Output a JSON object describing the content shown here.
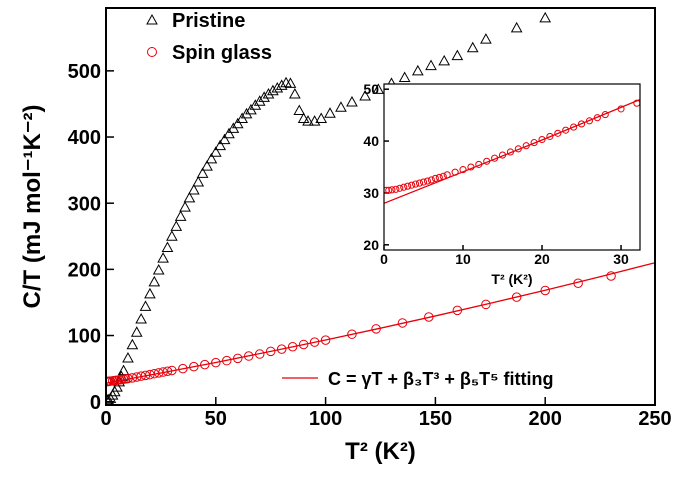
{
  "chart_data": [
    {
      "type": "scatter",
      "x_label": "T² (K²)",
      "y_label": "C/T (mJ mol⁻¹K⁻²)",
      "xlim": [
        0,
        250
      ],
      "ylim": [
        -5,
        595
      ],
      "xticks": [
        0,
        50,
        100,
        150,
        200,
        250
      ],
      "yticks": [
        0,
        100,
        200,
        300,
        400,
        500
      ],
      "series": [
        {
          "name": "Pristine",
          "marker": "triangle",
          "color": "#000000",
          "x": [
            0.5,
            1,
            2,
            3,
            4,
            5,
            6,
            7,
            8,
            10,
            12,
            14,
            16,
            18,
            20,
            22,
            24,
            26,
            28,
            30,
            32,
            34,
            36,
            38,
            40,
            42,
            44,
            46,
            48,
            50,
            52,
            54,
            56,
            58,
            60,
            62,
            64,
            66,
            68,
            70,
            72,
            74,
            76,
            78,
            80,
            82,
            84,
            86,
            88,
            90,
            92,
            95,
            98,
            102,
            107,
            112,
            118,
            124,
            130,
            136,
            142,
            148,
            154,
            160,
            167,
            173,
            187,
            200
          ],
          "values": [
            2,
            3,
            5,
            10,
            15,
            22,
            30,
            38,
            47,
            66,
            86,
            105,
            125,
            144,
            163,
            181,
            199,
            217,
            233,
            250,
            265,
            280,
            294,
            308,
            320,
            332,
            345,
            356,
            367,
            377,
            387,
            396,
            405,
            413,
            420,
            428,
            435,
            441,
            448,
            454,
            460,
            465,
            470,
            474,
            478,
            482,
            481,
            465,
            440,
            428,
            424,
            424,
            428,
            436,
            445,
            453,
            462,
            472,
            481,
            490,
            500,
            508,
            515,
            523,
            535,
            548,
            565,
            580
          ]
        },
        {
          "name": "Spin glass",
          "marker": "circle",
          "color": "#e8000b",
          "x": [
            0.3,
            0.6,
            1,
            1.5,
            2,
            3,
            4,
            5,
            6,
            7,
            8,
            9,
            10,
            12,
            14,
            16,
            18,
            20,
            22,
            24,
            26,
            28,
            30,
            35,
            40,
            45,
            50,
            55,
            60,
            65,
            70,
            75,
            80,
            85,
            90,
            95,
            100,
            112,
            123,
            135,
            147,
            160,
            173,
            187,
            200,
            215,
            230
          ],
          "values": [
            30.5,
            30.5,
            30.6,
            30.8,
            31,
            31.5,
            32,
            32.5,
            33,
            33.5,
            34,
            34.5,
            35,
            36,
            37.3,
            38.6,
            39.8,
            41,
            42.3,
            43.5,
            44.8,
            46,
            47.2,
            50,
            53,
            56,
            59,
            62,
            65.5,
            69,
            72,
            76,
            79.5,
            83,
            86.5,
            90,
            93,
            102,
            110,
            119,
            128,
            138,
            147,
            158,
            168,
            179,
            190
          ]
        },
        {
          "name": "C = γT + β₃T³ + β₅T⁵ fitting",
          "marker": "line",
          "color": "#e8000b",
          "x": [
            0,
            25,
            50,
            75,
            100,
            125,
            150,
            175,
            200,
            225,
            250
          ],
          "values": [
            28,
            43.4,
            59.3,
            76,
            93.2,
            111.1,
            129.6,
            148.8,
            168.5,
            188.9,
            210
          ]
        }
      ]
    },
    {
      "type": "scatter",
      "x_label": "T² (K²)",
      "xlim": [
        0,
        32.4
      ],
      "ylim": [
        19,
        51
      ],
      "xticks": [
        0,
        10,
        20,
        30
      ],
      "yticks": [
        20,
        30,
        40,
        50
      ],
      "series": [
        {
          "marker": "circle",
          "color": "#e8000b",
          "x": [
            0.3,
            0.6,
            1,
            1.5,
            2,
            2.5,
            3,
            3.5,
            4,
            4.5,
            5,
            5.5,
            6,
            6.5,
            7,
            7.5,
            8,
            9,
            10,
            11,
            12,
            13,
            14,
            15,
            16,
            17,
            18,
            19,
            20,
            21,
            22,
            23,
            24,
            25,
            26,
            27,
            28,
            30,
            32
          ],
          "values": [
            30.5,
            30.5,
            30.6,
            30.7,
            30.9,
            31.1,
            31.3,
            31.5,
            31.7,
            31.9,
            32.1,
            32.3,
            32.5,
            32.8,
            33,
            33.2,
            33.5,
            34,
            34.5,
            35,
            35.5,
            36.1,
            36.7,
            37.3,
            37.9,
            38.5,
            39.1,
            39.7,
            40.3,
            40.9,
            41.5,
            42.1,
            42.7,
            43.3,
            43.9,
            44.5,
            45.1,
            46.2,
            47.3
          ]
        },
        {
          "marker": "line",
          "color": "#e8000b",
          "x": [
            0,
            10,
            20,
            30,
            32.4
          ],
          "values": [
            28,
            34.07,
            40.2,
            46.5,
            48
          ]
        }
      ]
    }
  ]
}
